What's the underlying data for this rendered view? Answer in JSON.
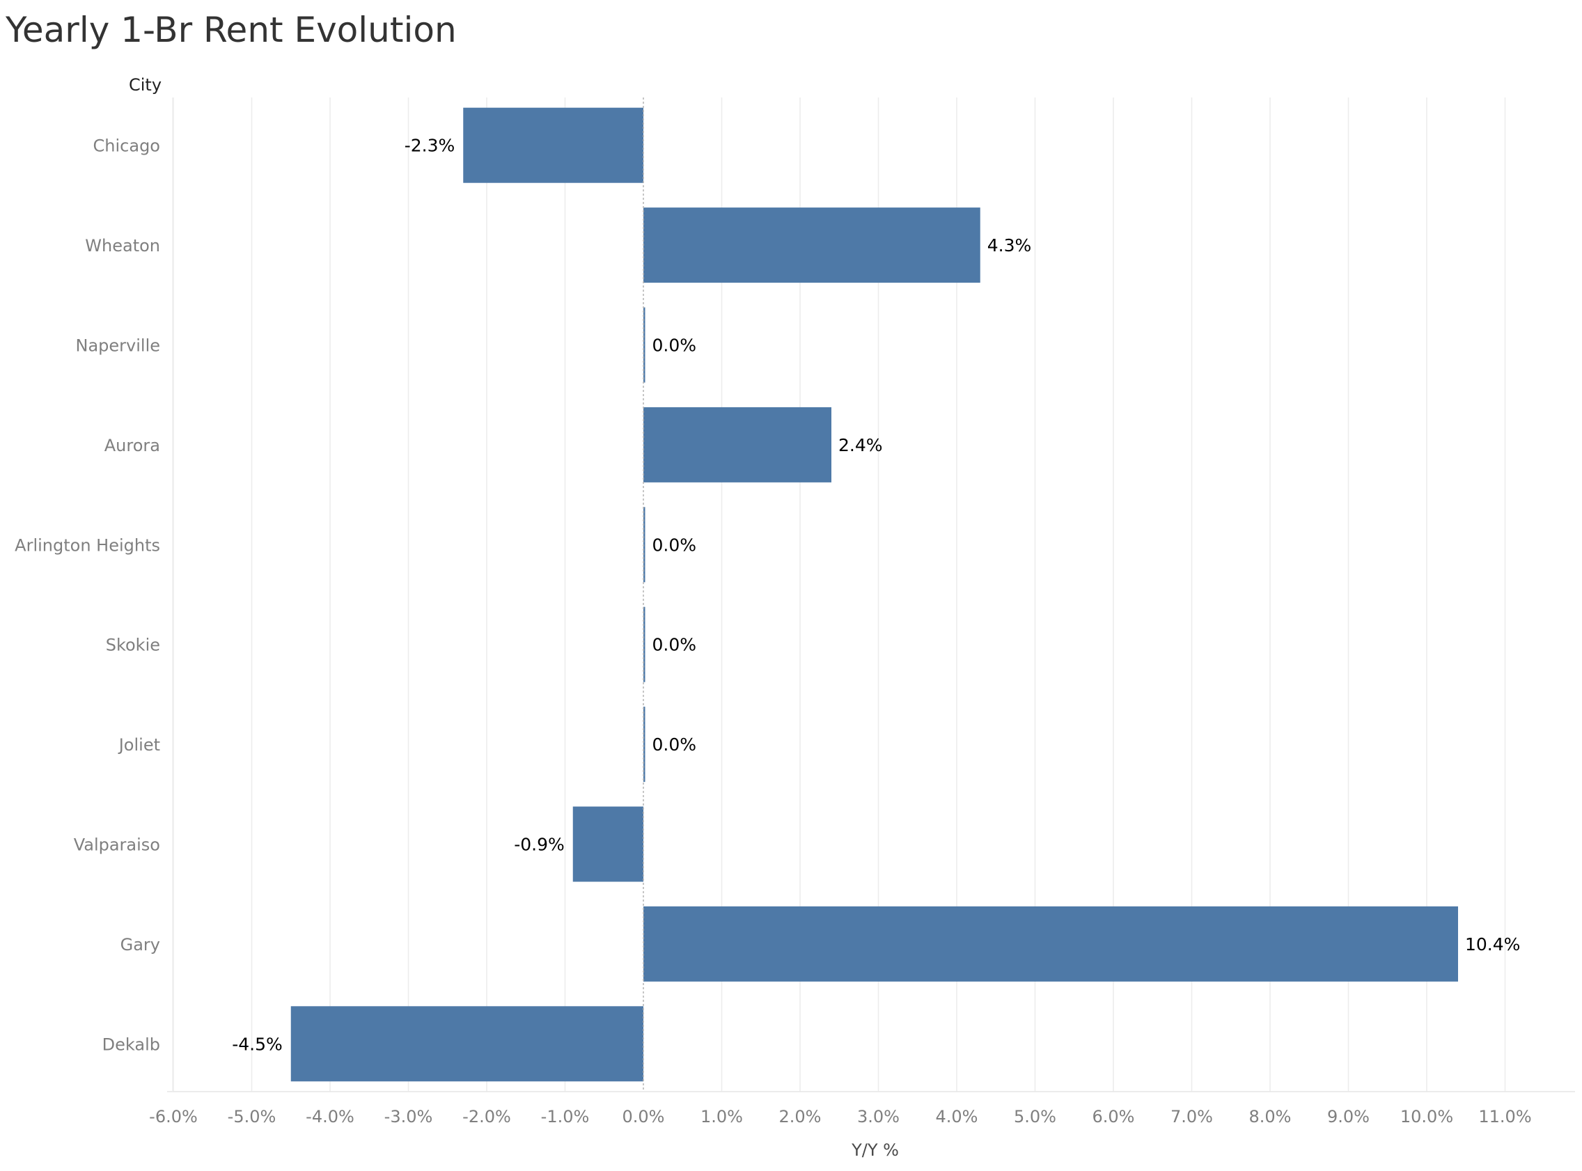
{
  "chart_data": {
    "type": "bar",
    "orientation": "horizontal",
    "title": "Yearly 1-Br Rent Evolution",
    "row_header": "City",
    "xlabel": "Y/Y %",
    "categories": [
      "Chicago",
      "Wheaton",
      "Naperville",
      "Aurora",
      "Arlington Heights",
      "Skokie",
      "Joliet",
      "Valparaiso",
      "Gary",
      "Dekalb"
    ],
    "values": [
      -2.3,
      4.3,
      0.0,
      2.4,
      0.0,
      0.0,
      0.0,
      -0.9,
      10.4,
      -4.5
    ],
    "data_labels": [
      "-2.3%",
      "4.3%",
      "0.0%",
      "2.4%",
      "0.0%",
      "0.0%",
      "0.0%",
      "-0.9%",
      "10.4%",
      "-4.5%"
    ],
    "xlim": [
      -6.0,
      11.0
    ],
    "xticks": [
      -6,
      -5,
      -4,
      -3,
      -2,
      -1,
      0,
      1,
      2,
      3,
      4,
      5,
      6,
      7,
      8,
      9,
      10,
      11
    ],
    "xtick_labels": [
      "-6.0%",
      "-5.0%",
      "-4.0%",
      "-3.0%",
      "-2.0%",
      "-1.0%",
      "0.0%",
      "1.0%",
      "2.0%",
      "3.0%",
      "4.0%",
      "5.0%",
      "6.0%",
      "7.0%",
      "8.0%",
      "9.0%",
      "10.0%",
      "11.0%"
    ],
    "grid": true,
    "bar_color": "#4e79a7"
  }
}
